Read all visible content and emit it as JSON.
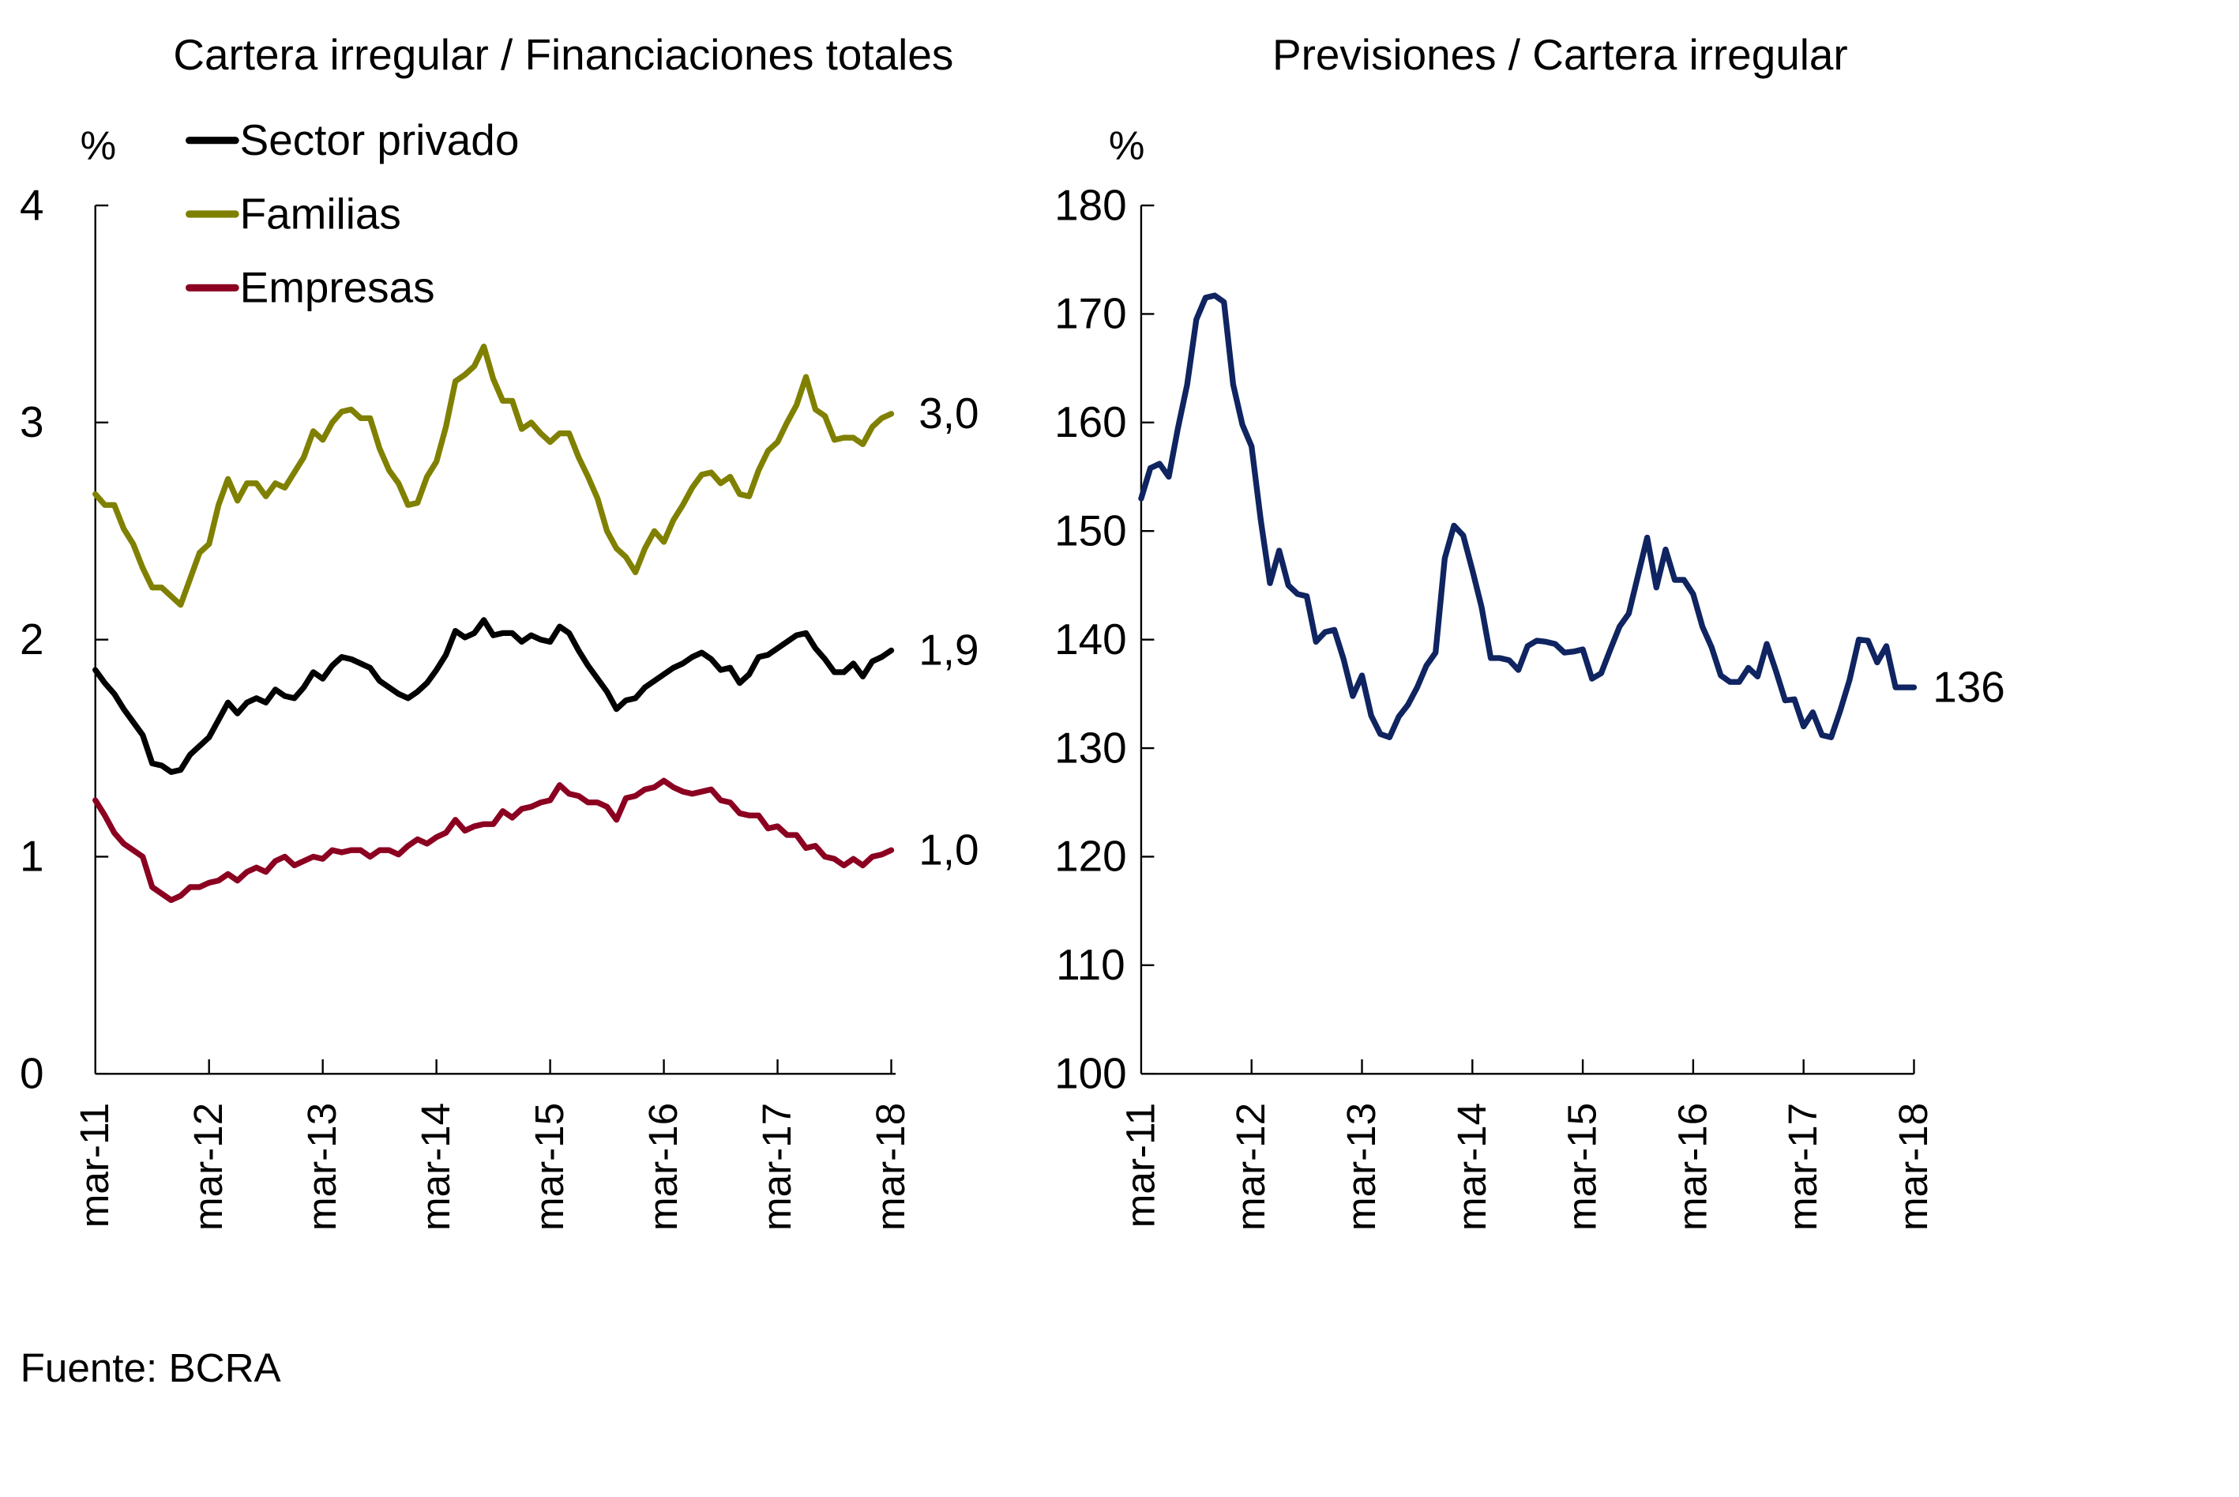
{
  "chart_data": [
    {
      "type": "line",
      "title": "Cartera irregular / Financiaciones totales",
      "ylabel": "%",
      "xlabel": "",
      "ylim": [
        0,
        4
      ],
      "yticks": [
        "0",
        "1",
        "2",
        "3",
        "4"
      ],
      "xticks": [
        "mar-11",
        "mar-12",
        "mar-13",
        "mar-14",
        "mar-15",
        "mar-16",
        "mar-17",
        "mar-18"
      ],
      "x_range": [
        "mar-11",
        "mar-18"
      ],
      "frequency": "monthly",
      "grid": false,
      "legend_position": "top-left",
      "series": [
        {
          "name": "Sector privado",
          "color": "#000000",
          "end_label": "1,9",
          "values": [
            1.86,
            1.8,
            1.75,
            1.68,
            1.62,
            1.56,
            1.43,
            1.42,
            1.39,
            1.4,
            1.47,
            1.51,
            1.55,
            1.63,
            1.71,
            1.66,
            1.71,
            1.73,
            1.71,
            1.77,
            1.74,
            1.73,
            1.78,
            1.85,
            1.82,
            1.88,
            1.92,
            1.91,
            1.89,
            1.87,
            1.81,
            1.78,
            1.75,
            1.73,
            1.76,
            1.8,
            1.86,
            1.93,
            2.04,
            2.01,
            2.03,
            2.09,
            2.02,
            2.03,
            2.03,
            1.99,
            2.02,
            2.0,
            1.99,
            2.06,
            2.03,
            1.95,
            1.88,
            1.82,
            1.76,
            1.68,
            1.72,
            1.73,
            1.78,
            1.81,
            1.84,
            1.87,
            1.89,
            1.92,
            1.94,
            1.91,
            1.86,
            1.87,
            1.8,
            1.84,
            1.92,
            1.93,
            1.96,
            1.99,
            2.02,
            2.03,
            1.96,
            1.91,
            1.85,
            1.85,
            1.89,
            1.83,
            1.9,
            1.92,
            1.95
          ]
        },
        {
          "name": "Familias",
          "color": "#808000",
          "end_label": "3,0",
          "values": [
            2.67,
            2.62,
            2.62,
            2.51,
            2.44,
            2.33,
            2.24,
            2.24,
            2.2,
            2.16,
            2.28,
            2.4,
            2.44,
            2.62,
            2.74,
            2.64,
            2.72,
            2.72,
            2.66,
            2.72,
            2.7,
            2.77,
            2.84,
            2.96,
            2.92,
            3.0,
            3.05,
            3.06,
            3.02,
            3.02,
            2.88,
            2.78,
            2.72,
            2.62,
            2.63,
            2.75,
            2.82,
            2.98,
            3.19,
            3.22,
            3.26,
            3.35,
            3.2,
            3.1,
            3.1,
            2.97,
            3.0,
            2.95,
            2.91,
            2.95,
            2.95,
            2.84,
            2.75,
            2.65,
            2.5,
            2.42,
            2.38,
            2.31,
            2.42,
            2.5,
            2.45,
            2.55,
            2.62,
            2.7,
            2.76,
            2.77,
            2.72,
            2.75,
            2.67,
            2.66,
            2.78,
            2.87,
            2.91,
            3.0,
            3.08,
            3.21,
            3.06,
            3.03,
            2.92,
            2.93,
            2.93,
            2.9,
            2.98,
            3.02,
            3.04
          ]
        },
        {
          "name": "Empresas",
          "color": "#8B0020",
          "end_label": "1,0",
          "values": [
            1.26,
            1.19,
            1.11,
            1.06,
            1.03,
            1.0,
            0.86,
            0.83,
            0.8,
            0.82,
            0.86,
            0.86,
            0.88,
            0.89,
            0.92,
            0.89,
            0.93,
            0.95,
            0.93,
            0.98,
            1.0,
            0.96,
            0.98,
            1.0,
            0.99,
            1.03,
            1.02,
            1.03,
            1.03,
            1.0,
            1.03,
            1.03,
            1.01,
            1.05,
            1.08,
            1.06,
            1.09,
            1.11,
            1.17,
            1.12,
            1.14,
            1.15,
            1.15,
            1.21,
            1.18,
            1.22,
            1.23,
            1.25,
            1.26,
            1.33,
            1.29,
            1.28,
            1.25,
            1.25,
            1.23,
            1.17,
            1.27,
            1.28,
            1.31,
            1.32,
            1.35,
            1.32,
            1.3,
            1.29,
            1.3,
            1.31,
            1.26,
            1.25,
            1.2,
            1.19,
            1.19,
            1.13,
            1.14,
            1.1,
            1.1,
            1.04,
            1.05,
            1.0,
            0.99,
            0.96,
            0.99,
            0.96,
            1.0,
            1.01,
            1.03
          ]
        }
      ]
    },
    {
      "type": "line",
      "title": "Previsiones / Cartera irregular",
      "ylabel": "%",
      "xlabel": "",
      "ylim": [
        100,
        180
      ],
      "yticks": [
        "100",
        "110",
        "120",
        "130",
        "140",
        "150",
        "160",
        "170",
        "180"
      ],
      "xticks": [
        "mar-11",
        "mar-12",
        "mar-13",
        "mar-14",
        "mar-15",
        "mar-16",
        "mar-17",
        "mar-18"
      ],
      "x_range": [
        "mar-11",
        "mar-18"
      ],
      "frequency": "monthly",
      "grid": false,
      "legend_position": "none",
      "series": [
        {
          "name": "Previsiones / Cartera irregular",
          "color": "#0F2460",
          "end_label": "136",
          "values": [
            153.0,
            155.8,
            156.2,
            155.0,
            159.5,
            163.5,
            169.5,
            171.5,
            171.7,
            171.1,
            163.5,
            159.8,
            157.8,
            151.0,
            145.2,
            148.2,
            145.0,
            144.2,
            144.0,
            139.8,
            140.7,
            140.9,
            138.2,
            134.8,
            136.7,
            133.0,
            131.3,
            131.0,
            132.9,
            134.0,
            135.6,
            137.6,
            138.8,
            147.5,
            150.5,
            149.6,
            146.4,
            143.0,
            138.3,
            138.3,
            138.1,
            137.2,
            139.4,
            139.9,
            139.8,
            139.6,
            138.8,
            138.9,
            139.1,
            136.4,
            136.9,
            139.1,
            141.2,
            142.4,
            145.9,
            149.4,
            144.8,
            148.3,
            145.5,
            145.5,
            144.2,
            141.2,
            139.3,
            136.7,
            136.1,
            136.1,
            137.4,
            136.6,
            139.6,
            137.1,
            134.4,
            134.5,
            132.0,
            133.3,
            131.2,
            131.0,
            133.5,
            136.3,
            140.0,
            139.9,
            137.9,
            139.4,
            135.6,
            135.6,
            135.6
          ]
        }
      ]
    }
  ],
  "footer": {
    "source": "Fuente: BCRA"
  }
}
